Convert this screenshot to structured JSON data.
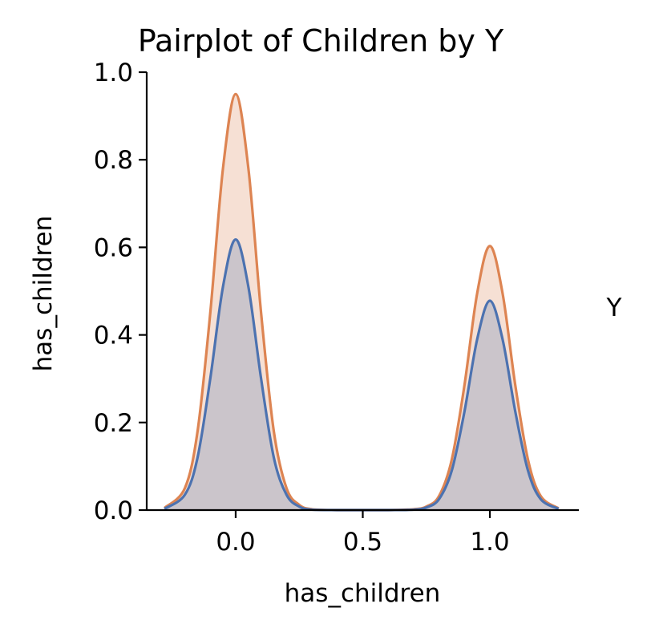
{
  "chart_data": {
    "type": "area",
    "title": "Pairplot of Children by Y",
    "xlabel": "has_children",
    "ylabel": "has_children",
    "xlim": [
      -0.35,
      1.35
    ],
    "ylim": [
      0,
      1.0
    ],
    "xticks": [
      0.0,
      0.5,
      1.0
    ],
    "xtick_labels": [
      "0.0",
      "0.5",
      "1.0"
    ],
    "yticks": [
      0.0,
      0.2,
      0.4,
      0.6,
      0.8,
      1.0
    ],
    "ytick_labels": [
      "0.0",
      "0.2",
      "0.4",
      "0.6",
      "0.8",
      "1.0"
    ],
    "grid": false,
    "legend_title": "Y",
    "series": [
      {
        "color": "#dd8452",
        "x": [
          -0.28,
          -0.2,
          -0.15,
          -0.1,
          -0.05,
          0.0,
          0.05,
          0.1,
          0.15,
          0.2,
          0.25,
          0.3,
          0.4,
          0.5,
          0.6,
          0.7,
          0.75,
          0.8,
          0.85,
          0.9,
          0.95,
          1.0,
          1.05,
          1.1,
          1.15,
          1.2,
          1.27
        ],
        "values": [
          0.005,
          0.05,
          0.18,
          0.45,
          0.78,
          0.95,
          0.78,
          0.45,
          0.18,
          0.05,
          0.012,
          0.002,
          0.0,
          0.0,
          0.0,
          0.002,
          0.008,
          0.032,
          0.115,
          0.285,
          0.495,
          0.603,
          0.495,
          0.285,
          0.115,
          0.032,
          0.004
        ]
      },
      {
        "color": "#4c72b0",
        "x": [
          -0.28,
          -0.2,
          -0.15,
          -0.1,
          -0.05,
          0.0,
          0.05,
          0.1,
          0.15,
          0.2,
          0.25,
          0.3,
          0.4,
          0.5,
          0.6,
          0.7,
          0.75,
          0.8,
          0.85,
          0.9,
          0.95,
          1.0,
          1.05,
          1.1,
          1.15,
          1.2,
          1.27
        ],
        "values": [
          0.003,
          0.035,
          0.12,
          0.3,
          0.51,
          0.618,
          0.51,
          0.3,
          0.12,
          0.035,
          0.008,
          0.001,
          0.0,
          0.0,
          0.0,
          0.001,
          0.006,
          0.025,
          0.09,
          0.225,
          0.39,
          0.478,
          0.39,
          0.225,
          0.09,
          0.025,
          0.003
        ]
      }
    ]
  }
}
